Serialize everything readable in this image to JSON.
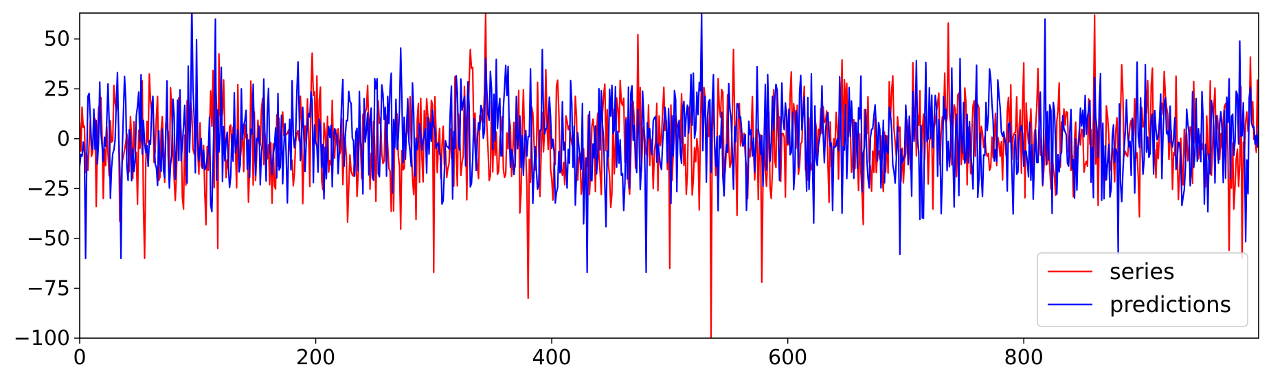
{
  "chart_data": {
    "type": "line",
    "title": "",
    "xlabel": "",
    "ylabel": "",
    "xlim": [
      0,
      999
    ],
    "ylim": [
      -100,
      63
    ],
    "x_ticks": [
      0,
      200,
      400,
      600,
      800
    ],
    "y_ticks": [
      50,
      25,
      0,
      -25,
      -50,
      -75,
      -100
    ],
    "grid": false,
    "legend_position": "lower-right",
    "series": [
      {
        "name": "series",
        "color": "#ff0000",
        "n": 1000,
        "amplitude": 22,
        "seed": 7,
        "spikes": [
          [
            344,
            63
          ],
          [
            380,
            -80
          ],
          [
            300,
            -67
          ],
          [
            535,
            -100
          ],
          [
            578,
            -72
          ],
          [
            736,
            58
          ],
          [
            860,
            62
          ],
          [
            55,
            -60
          ],
          [
            500,
            -65
          ],
          [
            117,
            -55
          ],
          [
            985,
            -60
          ]
        ]
      },
      {
        "name": "predictions",
        "color": "#0000ff",
        "n": 1000,
        "amplitude": 22,
        "seed": 19,
        "spikes": [
          [
            115,
            60
          ],
          [
            527,
            63
          ],
          [
            818,
            60
          ],
          [
            5,
            -60
          ],
          [
            35,
            -60
          ],
          [
            430,
            -67
          ],
          [
            480,
            -67
          ],
          [
            695,
            -58
          ],
          [
            880,
            -58
          ]
        ]
      }
    ]
  }
}
